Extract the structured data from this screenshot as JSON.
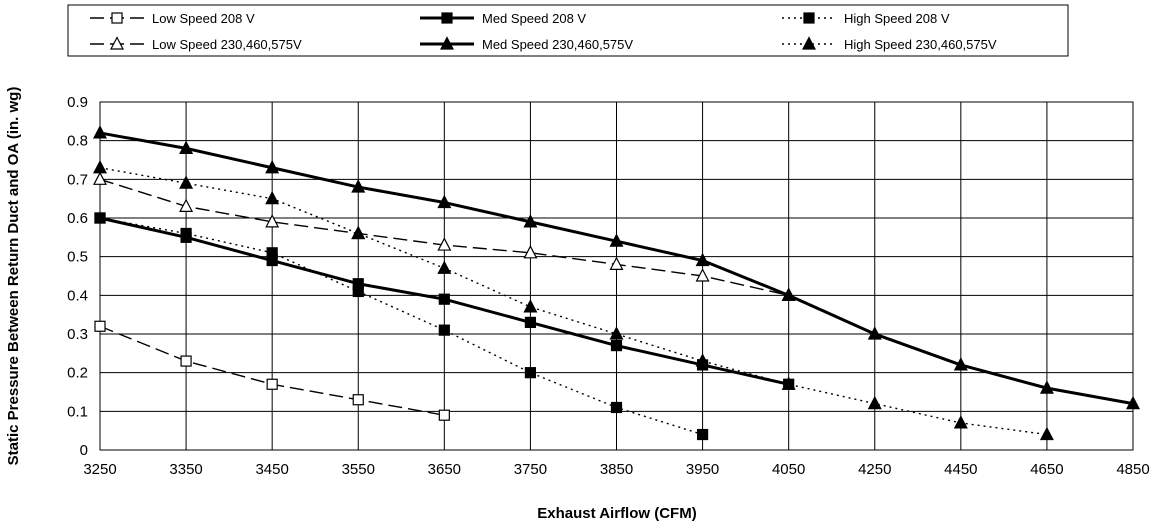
{
  "chart_data": {
    "type": "line",
    "title": "",
    "xlabel": "Exhaust Airflow (CFM)",
    "ylabel": "Static Pressure Between Return Duct and OA (in. wg)",
    "categories": [
      "3250",
      "3350",
      "3450",
      "3550",
      "3650",
      "3750",
      "3850",
      "3950",
      "4050",
      "4250",
      "4450",
      "4650",
      "4850"
    ],
    "ylim": [
      0,
      0.9
    ],
    "yticks": [
      "0",
      "0.1",
      "0.2",
      "0.3",
      "0.4",
      "0.5",
      "0.6",
      "0.7",
      "0.8",
      "0.9"
    ],
    "grid": true,
    "legend_position": "top",
    "series": [
      {
        "name": "Low Speed 208 V",
        "marker": "square-open",
        "line": "dashed",
        "points": [
          [
            0,
            0.32
          ],
          [
            1,
            0.23
          ],
          [
            2,
            0.17
          ],
          [
            3,
            0.13
          ],
          [
            4,
            0.09
          ]
        ]
      },
      {
        "name": "Med Speed 208 V",
        "marker": "square-filled",
        "line": "solid",
        "points": [
          [
            0,
            0.6
          ],
          [
            1,
            0.55
          ],
          [
            2,
            0.49
          ],
          [
            3,
            0.43
          ],
          [
            4,
            0.39
          ],
          [
            5,
            0.33
          ],
          [
            6,
            0.27
          ],
          [
            7,
            0.22
          ],
          [
            8,
            0.17
          ]
        ]
      },
      {
        "name": "High Speed 208 V",
        "marker": "square-filled",
        "line": "dotted",
        "points": [
          [
            0,
            0.6
          ],
          [
            1,
            0.56
          ],
          [
            2,
            0.51
          ],
          [
            3,
            0.41
          ],
          [
            4,
            0.31
          ],
          [
            5,
            0.2
          ],
          [
            6,
            0.11
          ],
          [
            7,
            0.04
          ]
        ]
      },
      {
        "name": "Low Speed 230,460,575V",
        "marker": "triangle-open",
        "line": "dashed",
        "points": [
          [
            0,
            0.7
          ],
          [
            1,
            0.63
          ],
          [
            2,
            0.59
          ],
          [
            3,
            0.56
          ],
          [
            4,
            0.53
          ],
          [
            5,
            0.51
          ],
          [
            6,
            0.48
          ],
          [
            7,
            0.45
          ],
          [
            8,
            0.4
          ]
        ]
      },
      {
        "name": "Med Speed 230,460,575V",
        "marker": "triangle-filled",
        "line": "solid",
        "points": [
          [
            0,
            0.82
          ],
          [
            1,
            0.78
          ],
          [
            2,
            0.73
          ],
          [
            3,
            0.68
          ],
          [
            4,
            0.64
          ],
          [
            5,
            0.59
          ],
          [
            6,
            0.54
          ],
          [
            7,
            0.49
          ],
          [
            8,
            0.4
          ],
          [
            9,
            0.3
          ],
          [
            10,
            0.22
          ],
          [
            11,
            0.16
          ],
          [
            12,
            0.12
          ]
        ]
      },
      {
        "name": "High Speed 230,460,575V",
        "marker": "triangle-filled",
        "line": "dotted",
        "points": [
          [
            0,
            0.73
          ],
          [
            1,
            0.69
          ],
          [
            2,
            0.65
          ],
          [
            3,
            0.56
          ],
          [
            4,
            0.47
          ],
          [
            5,
            0.37
          ],
          [
            6,
            0.3
          ],
          [
            7,
            0.23
          ],
          [
            8,
            0.17
          ],
          [
            9,
            0.12
          ],
          [
            10,
            0.07
          ],
          [
            11,
            0.04
          ]
        ]
      }
    ]
  },
  "colors": {
    "line": "#000000",
    "grid": "#000000",
    "background": "#ffffff"
  }
}
